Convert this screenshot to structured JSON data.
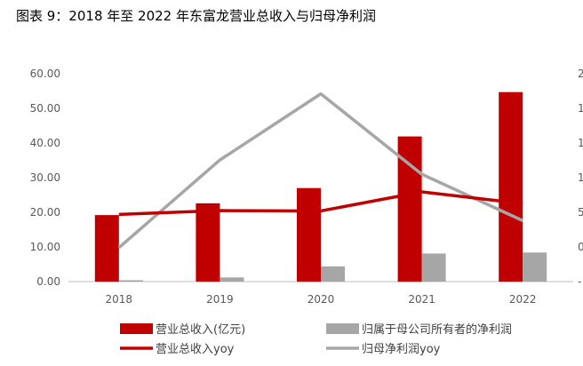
{
  "figure_title": "图表 9：2018 年至 2022 年东富龙营业总收入与归母净利润",
  "colors": {
    "revenue": "#C00000",
    "net_profit": "#A6A6A6",
    "revenue_yoy": "#C00000",
    "net_profit_yoy": "#A6A6A6"
  },
  "chart_data": {
    "type": "bar",
    "title": "",
    "categories": [
      "2018",
      "2019",
      "2020",
      "2021",
      "2022"
    ],
    "y_left": {
      "min": 0,
      "max": 60,
      "step": 10,
      "tick_labels": [
        "0.00",
        "10.00",
        "20.00",
        "30.00",
        "40.00",
        "50.00",
        "60.00"
      ]
    },
    "y_right": {
      "tick_labels": [
        "-",
        "0",
        "5",
        "1",
        "1",
        "1",
        "2"
      ]
    },
    "series": [
      {
        "name": "营业总收入(亿元)",
        "kind": "bar",
        "axis": "left",
        "values": [
          19.2,
          22.6,
          27.0,
          41.9,
          54.7
        ]
      },
      {
        "name": "归属于母公司所有者的净利润",
        "kind": "bar",
        "axis": "left",
        "values": [
          0.4,
          1.2,
          4.4,
          8.1,
          8.4
        ]
      },
      {
        "name": "营业总收入yoy",
        "kind": "line",
        "axis": "left",
        "values": [
          19.4,
          20.5,
          20.4,
          25.9,
          22.5
        ]
      },
      {
        "name": "归母净利润yoy",
        "kind": "line",
        "axis": "left",
        "values": [
          9.8,
          35.1,
          54.2,
          31.0,
          17.6
        ]
      }
    ],
    "grid": false,
    "legend_position": "bottom"
  }
}
